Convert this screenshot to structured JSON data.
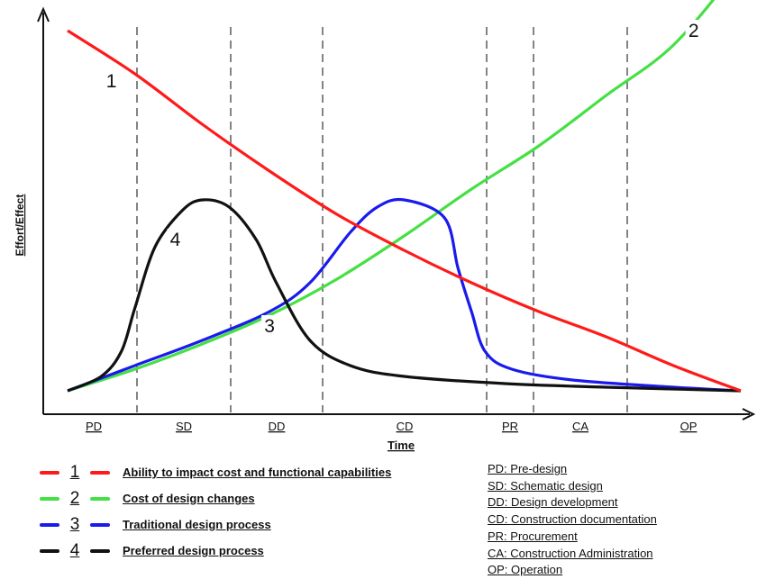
{
  "chart_data": {
    "type": "line",
    "title": "",
    "xlabel": "Time",
    "ylabel": "Effort/Effect",
    "phases": [
      {
        "abbr": "PD",
        "name": "PD: Pre-design"
      },
      {
        "abbr": "SD",
        "name": "SD: Schematic design"
      },
      {
        "abbr": "DD",
        "name": "DD: Design development"
      },
      {
        "abbr": "CD",
        "name": "CD: Construction documentation"
      },
      {
        "abbr": "PR",
        "name": "PR: Procurement"
      },
      {
        "abbr": "CA",
        "name": "CA: Construction Administration"
      },
      {
        "abbr": "OP",
        "name": "OP: Operation"
      }
    ],
    "series": [
      {
        "id": "1",
        "name": "Ability to impact cost and functional capabilities",
        "color": "#ff1a1a",
        "points": [
          [
            0,
            100
          ],
          [
            10,
            88
          ],
          [
            20,
            74
          ],
          [
            30,
            61
          ],
          [
            40,
            49
          ],
          [
            50,
            39
          ],
          [
            60,
            30
          ],
          [
            70,
            22
          ],
          [
            80,
            15
          ],
          [
            90,
            7
          ],
          [
            100,
            0
          ]
        ]
      },
      {
        "id": "2",
        "name": "Cost of design changes",
        "color": "#44e044",
        "points": [
          [
            0,
            0
          ],
          [
            10,
            6
          ],
          [
            20,
            13
          ],
          [
            30,
            21
          ],
          [
            40,
            31
          ],
          [
            50,
            43
          ],
          [
            60,
            56
          ],
          [
            70,
            68
          ],
          [
            80,
            82
          ],
          [
            90,
            96
          ],
          [
            100,
            118
          ]
        ]
      },
      {
        "id": "3",
        "name": "Traditional design process",
        "color": "#1a1aee",
        "points": [
          [
            0,
            0
          ],
          [
            10,
            7
          ],
          [
            20,
            14
          ],
          [
            30,
            22
          ],
          [
            36,
            30
          ],
          [
            42,
            44
          ],
          [
            46,
            51
          ],
          [
            50,
            53
          ],
          [
            56,
            48
          ],
          [
            58,
            34
          ],
          [
            60,
            22
          ],
          [
            62,
            11
          ],
          [
            66,
            6
          ],
          [
            75,
            3
          ],
          [
            90,
            1
          ],
          [
            100,
            0
          ]
        ]
      },
      {
        "id": "4",
        "name": "Preferred design process",
        "color": "#111111",
        "points": [
          [
            0,
            0
          ],
          [
            5,
            4
          ],
          [
            8,
            11
          ],
          [
            10,
            23
          ],
          [
            13,
            40
          ],
          [
            17,
            50
          ],
          [
            20,
            53
          ],
          [
            24,
            51
          ],
          [
            28,
            42
          ],
          [
            31,
            30
          ],
          [
            36,
            14
          ],
          [
            42,
            7
          ],
          [
            50,
            4
          ],
          [
            65,
            2
          ],
          [
            80,
            1
          ],
          [
            100,
            0
          ]
        ]
      }
    ]
  }
}
